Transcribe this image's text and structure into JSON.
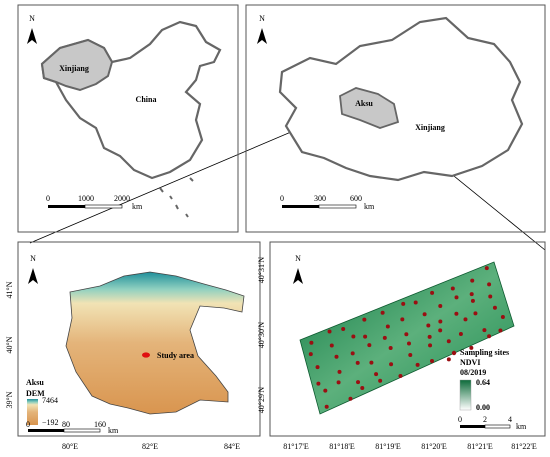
{
  "panels": [
    {
      "north": "N",
      "region": "Xinjiang",
      "country": "China",
      "scale": [
        "0",
        "1000",
        "2000",
        "km"
      ]
    },
    {
      "north": "N",
      "region": "Aksu",
      "province": "Xinjiang",
      "scale": [
        "0",
        "300",
        "600",
        "km"
      ]
    },
    {
      "north": "N",
      "lat": [
        "41°N",
        "40°N",
        "39°N"
      ],
      "lon": [
        "80°E",
        "82°E",
        "84°E"
      ],
      "legend_title": "Aksu",
      "legend_subtitle": "DEM",
      "legend_max": "7464",
      "legend_min": "−192",
      "study_area": "Study area",
      "scale": [
        "0",
        "80",
        "160",
        "km"
      ]
    },
    {
      "north": "N",
      "lat": [
        "40°31'N",
        "40°30'N",
        "40°29'N"
      ],
      "lon": [
        "81°17'E",
        "81°18'E",
        "81°19'E",
        "81°20'E",
        "81°21'E",
        "81°22'E"
      ],
      "legend_sites": "Sampling sites",
      "legend_title": "NDVI",
      "legend_date": "08/2019",
      "legend_max": "0.64",
      "legend_min": "0.00",
      "scale": [
        "0",
        "2",
        "4",
        "km"
      ]
    }
  ]
}
